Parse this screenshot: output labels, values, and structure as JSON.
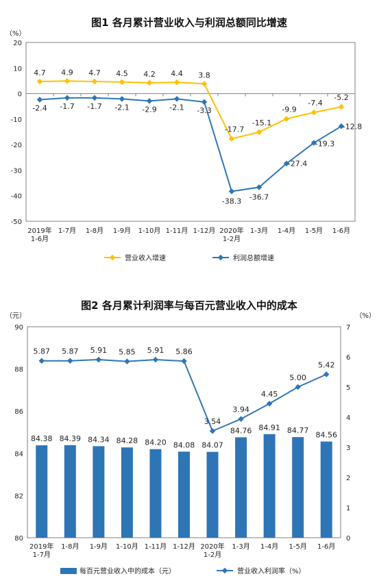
{
  "chart_data": [
    {
      "type": "line",
      "title": "图1  各月累计营业收入与利润总额同比增速",
      "ylabel": "（%）",
      "ylim": [
        -50,
        20
      ],
      "yticks": [
        20,
        10,
        0,
        -10,
        -20,
        -30,
        -40,
        -50
      ],
      "grid": false,
      "legend_position": "bottom",
      "categories": [
        [
          "2019年",
          "1-6月"
        ],
        [
          "1-7月"
        ],
        [
          "1-8月"
        ],
        [
          "1-9月"
        ],
        [
          "1-10月"
        ],
        [
          "1-11月"
        ],
        [
          "1-12月"
        ],
        [
          "2020年",
          "1-2月"
        ],
        [
          "1-3月"
        ],
        [
          "1-4月"
        ],
        [
          "1-5月"
        ],
        [
          "1-6月"
        ]
      ],
      "series": [
        {
          "name": "营业收入增速",
          "color": "#FFC000",
          "values": [
            4.7,
            4.9,
            4.7,
            4.5,
            4.2,
            4.4,
            3.8,
            -17.7,
            -15.1,
            -9.9,
            -7.4,
            -5.2
          ],
          "labels": [
            "4.7",
            "4.9",
            "4.7",
            "4.5",
            "4.2",
            "4.4",
            "3.8",
            "-17.7",
            "-15.1",
            "-9.9",
            "-7.4",
            "-5.2"
          ]
        },
        {
          "name": "利润总额增速",
          "color": "#2E75B6",
          "values": [
            -2.4,
            -1.7,
            -1.7,
            -2.1,
            -2.9,
            -2.1,
            -3.3,
            -38.3,
            -36.7,
            -27.4,
            -19.3,
            -12.8
          ],
          "labels": [
            "-2.4",
            "-1.7",
            "-1.7",
            "-2.1",
            "-2.9",
            "-2.1",
            "-3.3",
            "-38.3",
            "-36.7",
            "-27.4",
            "-19.3",
            "-12.8"
          ]
        }
      ]
    },
    {
      "type": "bar+line",
      "title": "图2  各月累计利润率与每百元营业收入中的成本",
      "ylabel_left": "（元）",
      "ylabel_right": "（%）",
      "ylim_left": [
        80,
        90
      ],
      "ylim_right": [
        0,
        7
      ],
      "yticks_left": [
        90,
        88,
        86,
        84,
        82,
        80
      ],
      "yticks_right": [
        7,
        6,
        5,
        4,
        3,
        2,
        1,
        0
      ],
      "grid": false,
      "legend_position": "bottom",
      "categories": [
        [
          "2019年",
          "1-7月"
        ],
        [
          "1-8月"
        ],
        [
          "1-9月"
        ],
        [
          "1-10月"
        ],
        [
          "1-11月"
        ],
        [
          "1-12月"
        ],
        [
          "2020年",
          "1-2月"
        ],
        [
          "1-3月"
        ],
        [
          "1-4月"
        ],
        [
          "1-5月"
        ],
        [
          "1-6月"
        ]
      ],
      "series": [
        {
          "name": "每百元营业收入中的成本（元）",
          "kind": "bar",
          "axis": "left",
          "color": "#2E75B6",
          "values": [
            84.38,
            84.39,
            84.34,
            84.28,
            84.2,
            84.08,
            84.07,
            84.76,
            84.91,
            84.77,
            84.56
          ],
          "labels": [
            "84.38",
            "84.39",
            "84.34",
            "84.28",
            "84.20",
            "84.08",
            "84.07",
            "84.76",
            "84.91",
            "84.77",
            "84.56"
          ]
        },
        {
          "name": "营业收入利润率（%）",
          "kind": "line",
          "axis": "right",
          "color": "#2E75B6",
          "values": [
            5.87,
            5.87,
            5.91,
            5.85,
            5.91,
            5.86,
            3.54,
            3.94,
            4.45,
            5.0,
            5.42
          ],
          "labels": [
            "5.87",
            "5.87",
            "5.91",
            "5.85",
            "5.91",
            "5.86",
            "3.54",
            "3.94",
            "4.45",
            "5.00",
            "5.42"
          ]
        }
      ]
    }
  ]
}
